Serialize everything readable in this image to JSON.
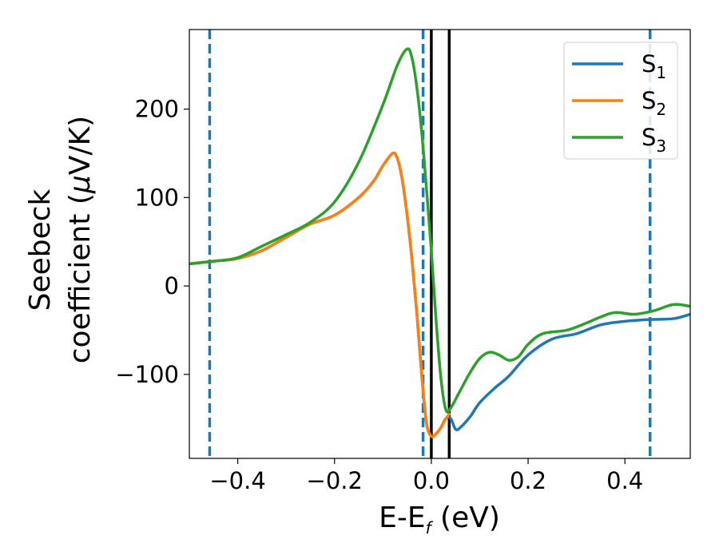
{
  "chart_data": {
    "type": "line",
    "xlabel": "E-E",
    "xlabel_sub": "f",
    "xlabel_unit": " (eV)",
    "ylabel_line1": "Seebeck",
    "ylabel_line2_pre": "coefficient  (",
    "ylabel_mu": "μ",
    "ylabel_line2_post": "V/K)",
    "xlim": [
      -0.5,
      0.535
    ],
    "ylim": [
      -195,
      290
    ],
    "xticks": [
      {
        "value": -0.4,
        "label": "−0.4"
      },
      {
        "value": -0.2,
        "label": "−0.2"
      },
      {
        "value": 0.0,
        "label": "0.0"
      },
      {
        "value": 0.2,
        "label": "0.2"
      },
      {
        "value": 0.4,
        "label": "0.4"
      }
    ],
    "yticks": [
      {
        "value": -100,
        "label": "−100"
      },
      {
        "value": 0,
        "label": "0"
      },
      {
        "value": 100,
        "label": "100"
      },
      {
        "value": 200,
        "label": "200"
      }
    ],
    "grid": false,
    "legend_position": "top-right",
    "vlines": [
      {
        "x": -0.458,
        "style": "dashed",
        "color": "#1f77b4"
      },
      {
        "x": -0.017,
        "style": "dashed",
        "color": "#1f77b4"
      },
      {
        "x": 0.452,
        "style": "dashed",
        "color": "#1f77b4"
      },
      {
        "x": 0.0,
        "style": "solid",
        "color": "#000000"
      },
      {
        "x": 0.037,
        "style": "solid",
        "color": "#000000"
      }
    ],
    "series": [
      {
        "name": "S",
        "sub": "1",
        "color": "#1f77b4",
        "points": [
          [
            -0.5,
            25
          ],
          [
            -0.45,
            28
          ],
          [
            -0.4,
            31
          ],
          [
            -0.35,
            40
          ],
          [
            -0.3,
            55
          ],
          [
            -0.25,
            70
          ],
          [
            -0.2,
            80
          ],
          [
            -0.15,
            100
          ],
          [
            -0.12,
            118
          ],
          [
            -0.1,
            136
          ],
          [
            -0.08,
            150
          ],
          [
            -0.07,
            144
          ],
          [
            -0.06,
            120
          ],
          [
            -0.05,
            80
          ],
          [
            -0.04,
            30
          ],
          [
            -0.03,
            -30
          ],
          [
            -0.02,
            -100
          ],
          [
            -0.01,
            -155
          ],
          [
            0.0,
            -170
          ],
          [
            0.01,
            -167
          ],
          [
            0.02,
            -160
          ],
          [
            0.03,
            -150
          ],
          [
            0.04,
            -150
          ],
          [
            0.05,
            -162
          ],
          [
            0.06,
            -160
          ],
          [
            0.08,
            -148
          ],
          [
            0.1,
            -132
          ],
          [
            0.13,
            -116
          ],
          [
            0.16,
            -102
          ],
          [
            0.2,
            -78
          ],
          [
            0.25,
            -60
          ],
          [
            0.3,
            -54
          ],
          [
            0.35,
            -44
          ],
          [
            0.4,
            -40
          ],
          [
            0.45,
            -38
          ],
          [
            0.5,
            -37
          ],
          [
            0.535,
            -32
          ]
        ]
      },
      {
        "name": "S",
        "sub": "2",
        "color": "#ff7f0e",
        "points": [
          [
            -0.5,
            25
          ],
          [
            -0.45,
            28
          ],
          [
            -0.4,
            31
          ],
          [
            -0.35,
            40
          ],
          [
            -0.3,
            55
          ],
          [
            -0.25,
            70
          ],
          [
            -0.2,
            80
          ],
          [
            -0.15,
            100
          ],
          [
            -0.12,
            118
          ],
          [
            -0.1,
            136
          ],
          [
            -0.08,
            150
          ],
          [
            -0.07,
            144
          ],
          [
            -0.06,
            120
          ],
          [
            -0.05,
            80
          ],
          [
            -0.04,
            30
          ],
          [
            -0.03,
            -30
          ],
          [
            -0.02,
            -100
          ],
          [
            -0.01,
            -155
          ],
          [
            0.0,
            -170
          ],
          [
            0.01,
            -167
          ],
          [
            0.02,
            -160
          ],
          [
            0.03,
            -150
          ],
          [
            0.037,
            -145
          ]
        ]
      },
      {
        "name": "S",
        "sub": "3",
        "color": "#2ca02c",
        "points": [
          [
            -0.5,
            25
          ],
          [
            -0.45,
            28
          ],
          [
            -0.4,
            32
          ],
          [
            -0.35,
            45
          ],
          [
            -0.3,
            58
          ],
          [
            -0.25,
            72
          ],
          [
            -0.2,
            95
          ],
          [
            -0.15,
            140
          ],
          [
            -0.1,
            205
          ],
          [
            -0.07,
            250
          ],
          [
            -0.05,
            268
          ],
          [
            -0.04,
            258
          ],
          [
            -0.03,
            225
          ],
          [
            -0.02,
            175
          ],
          [
            -0.01,
            110
          ],
          [
            0.0,
            40
          ],
          [
            0.01,
            -40
          ],
          [
            0.02,
            -105
          ],
          [
            0.03,
            -140
          ],
          [
            0.04,
            -138
          ],
          [
            0.06,
            -118
          ],
          [
            0.08,
            -98
          ],
          [
            0.1,
            -82
          ],
          [
            0.12,
            -75
          ],
          [
            0.14,
            -78
          ],
          [
            0.16,
            -84
          ],
          [
            0.18,
            -80
          ],
          [
            0.2,
            -66
          ],
          [
            0.23,
            -54
          ],
          [
            0.28,
            -50
          ],
          [
            0.32,
            -42
          ],
          [
            0.35,
            -35
          ],
          [
            0.38,
            -30
          ],
          [
            0.42,
            -32
          ],
          [
            0.46,
            -28
          ],
          [
            0.5,
            -21
          ],
          [
            0.535,
            -23
          ]
        ]
      }
    ]
  }
}
